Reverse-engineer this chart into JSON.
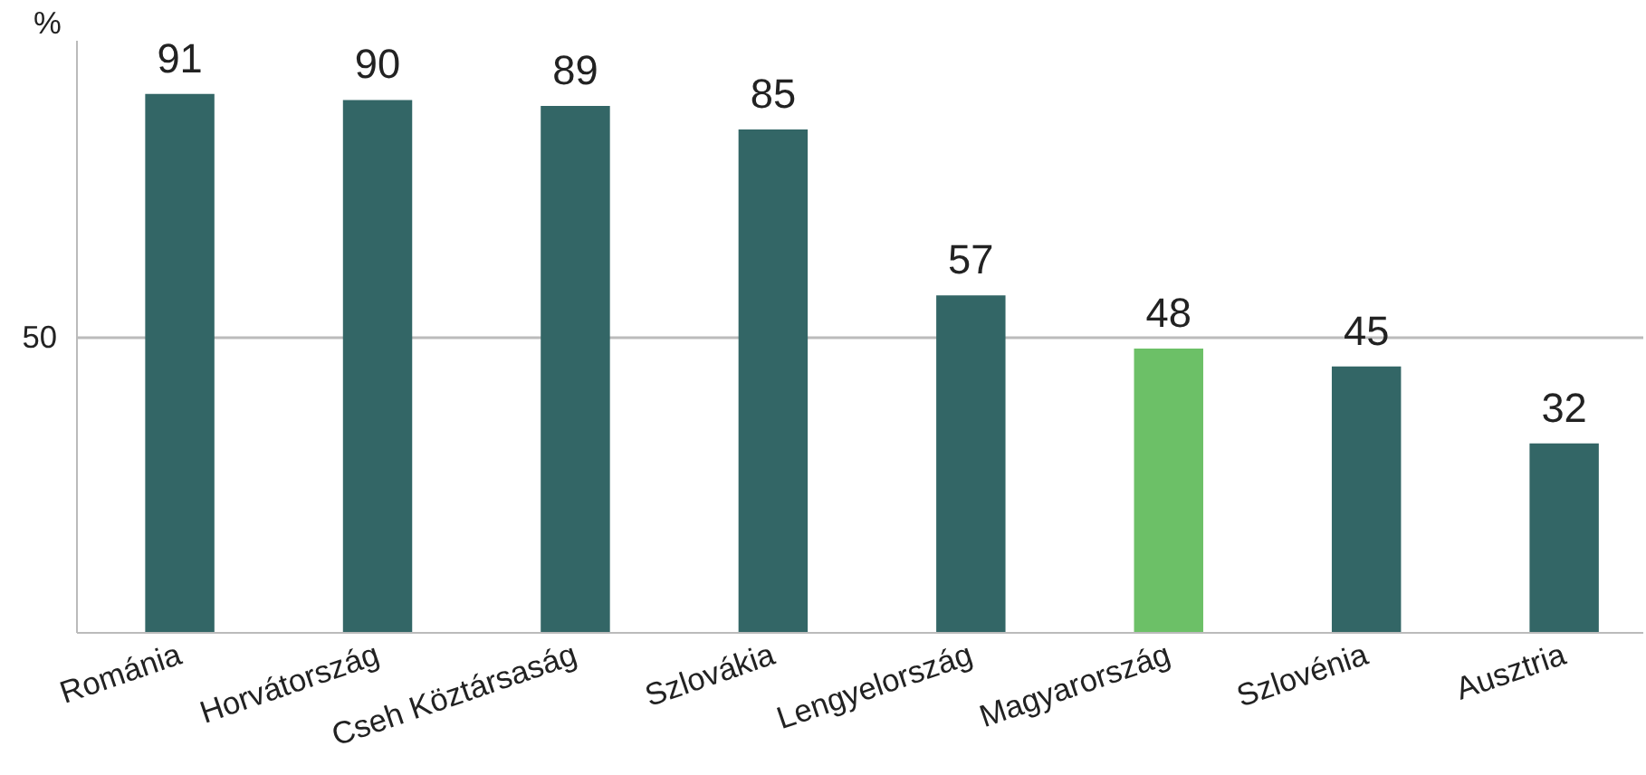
{
  "chart_data": {
    "type": "bar",
    "ylabel": "%",
    "categories": [
      "Románia",
      "Horvátország",
      "Cseh Köztársaság",
      "Szlovákia",
      "Lengyelország",
      "Magyarország",
      "Szlovénia",
      "Ausztria"
    ],
    "values": [
      91,
      90,
      89,
      85,
      57,
      48,
      45,
      32
    ],
    "colors": [
      "#336666",
      "#336666",
      "#336666",
      "#336666",
      "#336666",
      "#6cc067",
      "#336666",
      "#336666"
    ],
    "ylim": [
      0,
      100
    ],
    "yticks": [
      {
        "value": 0,
        "label": null
      },
      50
    ],
    "grid": "y",
    "data_labels": true
  }
}
